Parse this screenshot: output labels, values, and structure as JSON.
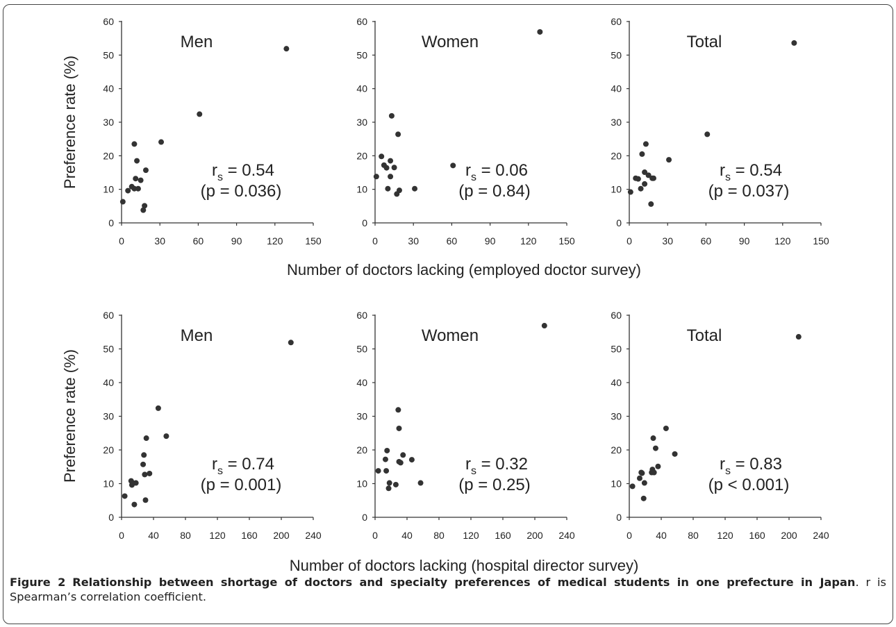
{
  "colors": {
    "marker": "#333333",
    "axis": "#333333",
    "text": "#222222"
  },
  "figure": {
    "caption": {
      "label": "Figure 2",
      "title": "Relationship between shortage of doctors and specialty preferences of medical students in one prefecture in Japan",
      "rest": ". r is Spearman’s correlation coefficient."
    }
  },
  "rows": [
    {
      "xlabel": "Number of doctors lacking (employed doctor survey)"
    },
    {
      "xlabel": "Number of doctors lacking (hospital director survey)"
    }
  ],
  "chart_data": [
    {
      "type": "scatter",
      "panel": "Men",
      "ylabel": "Preference rate (%)",
      "xlim": [
        0,
        150
      ],
      "ylim": [
        0,
        60
      ],
      "xticks": [
        0,
        30,
        60,
        90,
        120,
        150
      ],
      "yticks": [
        0,
        10,
        20,
        30,
        40,
        50,
        60
      ],
      "stat_main": "r",
      "stat_sub": "s",
      "stat_value": " = 0.54",
      "p": "(p = 0.036)",
      "points": [
        [
          1,
          6.3
        ],
        [
          5,
          9.6
        ],
        [
          8,
          10.8
        ],
        [
          10,
          23.5
        ],
        [
          10,
          10.2
        ],
        [
          11,
          13.2
        ],
        [
          12,
          18.5
        ],
        [
          13,
          10.2
        ],
        [
          15,
          12.7
        ],
        [
          17,
          3.8
        ],
        [
          18,
          5.1
        ],
        [
          19,
          15.7
        ],
        [
          31,
          24.1
        ],
        [
          61,
          32.4
        ],
        [
          129,
          51.9
        ]
      ]
    },
    {
      "type": "scatter",
      "panel": "Women",
      "ylabel": "",
      "xlim": [
        0,
        150
      ],
      "ylim": [
        0,
        60
      ],
      "xticks": [
        0,
        30,
        60,
        90,
        120,
        150
      ],
      "yticks": [
        0,
        10,
        20,
        30,
        40,
        50,
        60
      ],
      "stat_main": "r",
      "stat_sub": "s",
      "stat_value": " = 0.06",
      "p": "(p = 0.84)",
      "points": [
        [
          1,
          13.8
        ],
        [
          5,
          19.8
        ],
        [
          7,
          17.2
        ],
        [
          9,
          16.4
        ],
        [
          10,
          10.2
        ],
        [
          12,
          13.8
        ],
        [
          12,
          18.5
        ],
        [
          13,
          31.9
        ],
        [
          15,
          16.5
        ],
        [
          17,
          8.6
        ],
        [
          18,
          26.4
        ],
        [
          19,
          9.7
        ],
        [
          31,
          10.2
        ],
        [
          61,
          17.1
        ],
        [
          129,
          56.9
        ]
      ]
    },
    {
      "type": "scatter",
      "panel": "Total",
      "ylabel": "",
      "xlim": [
        0,
        150
      ],
      "ylim": [
        0,
        60
      ],
      "xticks": [
        0,
        30,
        60,
        90,
        120,
        150
      ],
      "yticks": [
        0,
        10,
        20,
        30,
        40,
        50,
        60
      ],
      "stat_main": "r",
      "stat_sub": "s",
      "stat_value": " = 0.54",
      "p": "(p = 0.037)",
      "points": [
        [
          1,
          9.2
        ],
        [
          5,
          13.3
        ],
        [
          7,
          13.1
        ],
        [
          9,
          10.2
        ],
        [
          10,
          20.5
        ],
        [
          12,
          11.6
        ],
        [
          12,
          15.1
        ],
        [
          13,
          23.5
        ],
        [
          15,
          14.2
        ],
        [
          17,
          5.6
        ],
        [
          18,
          13.3
        ],
        [
          19,
          13.3
        ],
        [
          31,
          18.8
        ],
        [
          61,
          26.4
        ],
        [
          129,
          53.6
        ]
      ]
    },
    {
      "type": "scatter",
      "panel": "Men",
      "ylabel": "Preference rate (%)",
      "xlim": [
        0,
        240
      ],
      "ylim": [
        0,
        60
      ],
      "xticks": [
        0,
        40,
        80,
        120,
        160,
        200,
        240
      ],
      "yticks": [
        0,
        10,
        20,
        30,
        40,
        50,
        60
      ],
      "stat_main": "r",
      "stat_sub": "s",
      "stat_value": " = 0.74",
      "p": "(p = 0.001)",
      "points": [
        [
          4,
          6.3
        ],
        [
          12,
          10.8
        ],
        [
          13,
          9.6
        ],
        [
          14,
          10.2
        ],
        [
          16,
          3.8
        ],
        [
          18,
          10.2
        ],
        [
          27,
          15.7
        ],
        [
          28,
          18.5
        ],
        [
          29,
          12.7
        ],
        [
          30,
          5.1
        ],
        [
          31,
          23.5
        ],
        [
          35,
          13.0
        ],
        [
          46,
          32.4
        ],
        [
          56,
          24.1
        ],
        [
          212,
          51.9
        ]
      ]
    },
    {
      "type": "scatter",
      "panel": "Women",
      "ylabel": "",
      "xlim": [
        0,
        240
      ],
      "ylim": [
        0,
        60
      ],
      "xticks": [
        0,
        40,
        80,
        120,
        160,
        200,
        240
      ],
      "yticks": [
        0,
        10,
        20,
        30,
        40,
        50,
        60
      ],
      "stat_main": "r",
      "stat_sub": "s",
      "stat_value": " = 0.32",
      "p": "(p = 0.25)",
      "points": [
        [
          4,
          13.8
        ],
        [
          13,
          17.2
        ],
        [
          14,
          13.8
        ],
        [
          15,
          19.8
        ],
        [
          17,
          8.6
        ],
        [
          18,
          10.2
        ],
        [
          26,
          9.7
        ],
        [
          29,
          31.9
        ],
        [
          30,
          26.4
        ],
        [
          30,
          16.5
        ],
        [
          32,
          16.2
        ],
        [
          35,
          18.5
        ],
        [
          46,
          17.1
        ],
        [
          57,
          10.2
        ],
        [
          212,
          56.9
        ]
      ]
    },
    {
      "type": "scatter",
      "panel": "Total",
      "ylabel": "",
      "xlim": [
        0,
        240
      ],
      "ylim": [
        0,
        60
      ],
      "xticks": [
        0,
        40,
        80,
        120,
        160,
        200,
        240
      ],
      "yticks": [
        0,
        10,
        20,
        30,
        40,
        50,
        60
      ],
      "stat_main": "r",
      "stat_sub": "s",
      "stat_value": " = 0.83",
      "p": "(p < 0.001)",
      "points": [
        [
          4,
          9.2
        ],
        [
          13,
          11.6
        ],
        [
          15,
          13.3
        ],
        [
          16,
          13.1
        ],
        [
          18,
          5.6
        ],
        [
          19,
          10.2
        ],
        [
          28,
          13.3
        ],
        [
          29,
          14.2
        ],
        [
          30,
          23.5
        ],
        [
          31,
          13.3
        ],
        [
          33,
          20.5
        ],
        [
          36,
          15.1
        ],
        [
          46,
          26.4
        ],
        [
          57,
          18.8
        ],
        [
          212,
          53.6
        ]
      ]
    }
  ]
}
